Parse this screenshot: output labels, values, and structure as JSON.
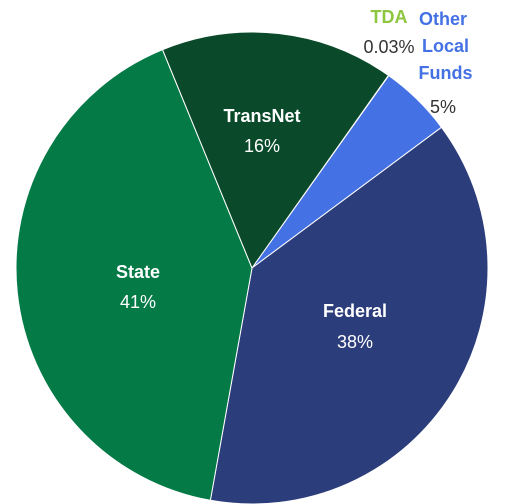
{
  "chart_data": {
    "type": "pie",
    "categories": [
      "TDA",
      "Other Local Funds",
      "Federal",
      "State",
      "TransNet"
    ],
    "values": [
      0.03,
      5,
      38,
      41,
      16
    ],
    "value_labels": [
      "0.03%",
      "5%",
      "38%",
      "41%",
      "16%"
    ],
    "colors": [
      "#8dc63f",
      "#4472e4",
      "#2b3d7a",
      "#047a46",
      "#0a4a2a"
    ]
  }
}
